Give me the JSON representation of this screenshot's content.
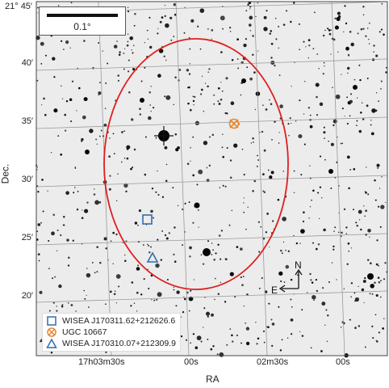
{
  "axes": {
    "y_ticks": [
      {
        "label": "21° 45′"
      },
      {
        "label": "40′"
      },
      {
        "label": "35′"
      },
      {
        "label": "30′"
      },
      {
        "label": "25′"
      },
      {
        "label": "20′"
      }
    ],
    "x_ticks": [
      {
        "label": "17h03m30s"
      },
      {
        "label": "00s"
      },
      {
        "label": "02m30s"
      },
      {
        "label": "00s"
      }
    ],
    "x_title": "RA",
    "y_title": "Dec."
  },
  "scale": {
    "label": "0.1°"
  },
  "compass": {
    "north": "N",
    "east": "E"
  },
  "legend": [
    {
      "label": "WISEA J170311.62+212626.6",
      "marker": "square",
      "color": "#2e6db4"
    },
    {
      "label": "UGC 10667",
      "marker": "x-circle",
      "color": "#e8862a"
    },
    {
      "label": "WISEA J170310.07+212309.9",
      "marker": "triangle",
      "color": "#2e6db4"
    }
  ],
  "colors": {
    "ellipse": "#e01e1e",
    "blue": "#2e6db4",
    "orange": "#e8862a",
    "grid": "#9a9a9a"
  }
}
